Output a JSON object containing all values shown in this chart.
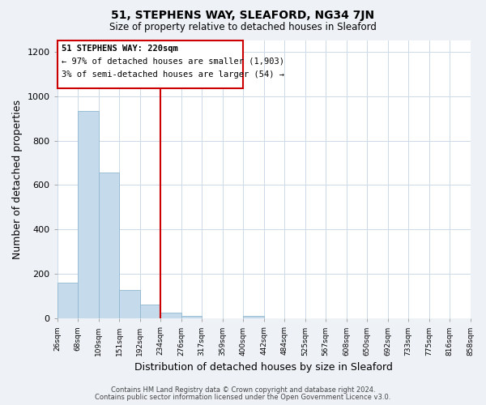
{
  "title": "51, STEPHENS WAY, SLEAFORD, NG34 7JN",
  "subtitle": "Size of property relative to detached houses in Sleaford",
  "xlabel": "Distribution of detached houses by size in Sleaford",
  "ylabel": "Number of detached properties",
  "bar_values": [
    160,
    935,
    655,
    130,
    62,
    28,
    12,
    0,
    0,
    12,
    0,
    0,
    0,
    0,
    0,
    0,
    0,
    0,
    0,
    0
  ],
  "bin_labels": [
    "26sqm",
    "68sqm",
    "109sqm",
    "151sqm",
    "192sqm",
    "234sqm",
    "276sqm",
    "317sqm",
    "359sqm",
    "400sqm",
    "442sqm",
    "484sqm",
    "525sqm",
    "567sqm",
    "608sqm",
    "650sqm",
    "692sqm",
    "733sqm",
    "775sqm",
    "816sqm",
    "858sqm"
  ],
  "bar_color": "#c5daea",
  "bar_edge_color": "#90b8d0",
  "vline_color": "#cc0000",
  "annotation_line1": "51 STEPHENS WAY: 220sqm",
  "annotation_line2": "← 97% of detached houses are smaller (1,903)",
  "annotation_line3": "3% of semi-detached houses are larger (54) →",
  "ylim": [
    0,
    1250
  ],
  "yticks": [
    0,
    200,
    400,
    600,
    800,
    1000,
    1200
  ],
  "footer_line1": "Contains HM Land Registry data © Crown copyright and database right 2024.",
  "footer_line2": "Contains public sector information licensed under the Open Government Licence v3.0.",
  "bg_color": "#eef2f7",
  "plot_bg_color": "#ffffff",
  "grid_color": "#ccd9e8"
}
